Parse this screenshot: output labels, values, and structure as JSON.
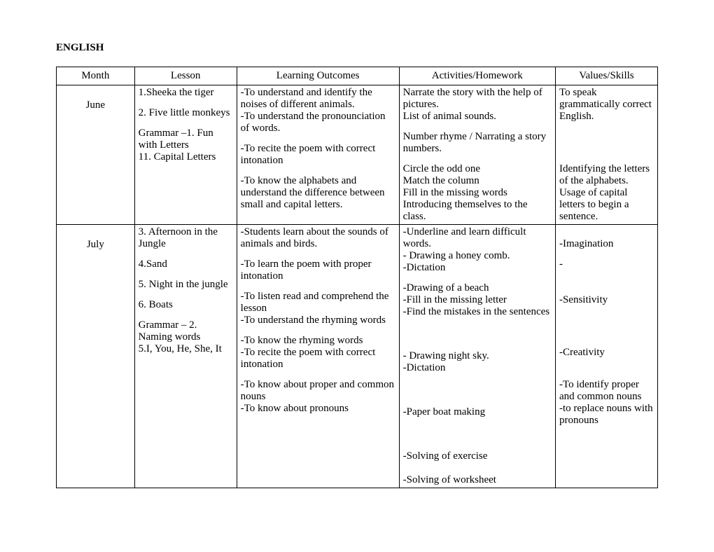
{
  "title": "ENGLISH",
  "columns": [
    "Month",
    "Lesson",
    "Learning Outcomes",
    "Activities/Homework",
    "Values/Skills"
  ],
  "rows": [
    {
      "month": "June",
      "lessons": [
        {
          "lesson": [
            "1.Sheeka the tiger"
          ],
          "outcomes": [
            "-To understand and identify the noises of different animals.",
            "-To understand the pronounciation of words."
          ],
          "activities": [
            "Narrate the story with the help of pictures.",
            "List of animal sounds."
          ],
          "values": [
            "To speak grammatically correct English."
          ]
        },
        {
          "lesson": [
            "2. Five little monkeys"
          ],
          "outcomes": [
            "-To recite the poem with correct intonation"
          ],
          "activities": [
            "Number rhyme / Narrating a story numbers."
          ],
          "values": []
        },
        {
          "lesson": [
            "Grammar –1. Fun with Letters",
            "11. Capital Letters"
          ],
          "outcomes": [
            "-To know the alphabets and understand the difference between small and capital letters."
          ],
          "activities": [
            "Circle the odd one",
            "Match the column",
            "Fill in the missing words",
            "Introducing themselves to the class."
          ],
          "values": [
            "",
            "Identifying the letters of the alphabets.",
            "Usage of capital letters to begin a sentence."
          ]
        }
      ]
    },
    {
      "month": "July",
      "lessons": [
        {
          "lesson": [
            "3. Afternoon in the Jungle"
          ],
          "outcomes": [
            "-Students learn about the sounds of animals and birds."
          ],
          "activities": [
            "-Underline and learn difficult words.",
            "- Drawing a honey comb.",
            "-Dictation"
          ],
          "values": [
            "",
            "-Imagination"
          ]
        },
        {
          "lesson": [
            "4.Sand"
          ],
          "outcomes": [
            "-To learn the poem with proper intonation"
          ],
          "activities": [
            "-Drawing of a beach",
            "-Fill in the missing letter",
            "-Find the mistakes in the sentences"
          ],
          "values": [
            "-",
            "",
            "",
            "-Sensitivity"
          ]
        },
        {
          "lesson": [
            "5. Night in the jungle"
          ],
          "outcomes": [
            "-To listen read and comprehend the lesson",
            "-To understand the rhyming words"
          ],
          "activities": [
            "",
            "",
            "- Drawing night sky.",
            "-Dictation"
          ],
          "values": []
        },
        {
          "lesson": [
            "6. Boats"
          ],
          "outcomes": [
            "-To know the rhyming words",
            "-To recite the poem with correct intonation"
          ],
          "activities": [
            "",
            "",
            "-Paper boat making"
          ],
          "values": [
            "",
            "-Creativity"
          ]
        },
        {
          "lesson": [
            "Grammar – 2. Naming words",
            "5.I, You, He, She, It"
          ],
          "outcomes": [
            "-To know about proper and common nouns",
            "-To know about pronouns"
          ],
          "activities": [
            "",
            "",
            "-Solving of exercise",
            "",
            "-Solving of worksheet"
          ],
          "values": [
            "",
            "-To identify proper and common nouns",
            "-to replace nouns with pronouns"
          ]
        }
      ]
    }
  ],
  "style": {
    "font_family": "Times New Roman",
    "font_size_pt": 12,
    "title_weight": "bold",
    "border_color": "#000000",
    "background_color": "#ffffff",
    "text_color": "#000000",
    "col_widths_pct": [
      13,
      17,
      27,
      26,
      17
    ]
  }
}
